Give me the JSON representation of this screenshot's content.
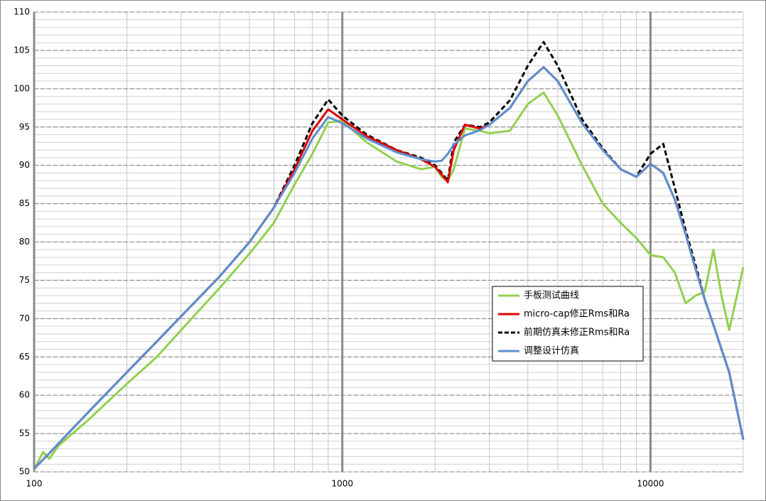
{
  "chart_data": {
    "type": "line",
    "xscale": "log",
    "grid": true,
    "legend": "right",
    "x": [
      100,
      107,
      112,
      120,
      150,
      200,
      250,
      300,
      400,
      500,
      600,
      700,
      800,
      900,
      1000,
      1200,
      1500,
      1800,
      2000,
      2100,
      2200,
      2300,
      2500,
      2800,
      3000,
      3500,
      4000,
      4500,
      5000,
      6000,
      7000,
      8000,
      9000,
      10000,
      11000,
      12000,
      13000,
      14000,
      15000,
      16000,
      17000,
      18000,
      20000
    ],
    "series": [
      {
        "name": "手板测试曲线",
        "color": "#92d050",
        "dash": false,
        "values": [
          50.3,
          52.6,
          51.7,
          53.4,
          56.8,
          61.5,
          65.0,
          68.5,
          74.0,
          78.5,
          82.5,
          87.5,
          91.5,
          95.6,
          95.8,
          93.0,
          90.5,
          89.5,
          89.8,
          88.5,
          88.0,
          89.5,
          94.8,
          94.5,
          94.2,
          94.5,
          98.0,
          99.5,
          96.5,
          90.0,
          85.0,
          82.5,
          80.5,
          78.3,
          78.0,
          76.0,
          72.0,
          73.0,
          73.5,
          79.0,
          73.0,
          68.5,
          76.7
        ]
      },
      {
        "name": "micro-cap修正Rms和Ra",
        "color": "#e00000",
        "dash": false,
        "values": [
          50.4,
          51.6,
          52.4,
          53.7,
          57.8,
          63.0,
          67.0,
          70.3,
          75.5,
          80.0,
          84.5,
          89.5,
          94.5,
          97.3,
          96.0,
          93.8,
          92.0,
          90.8,
          89.8,
          88.8,
          87.8,
          92.0,
          95.3,
          94.8,
          95.3,
          97.5,
          101.0,
          102.8,
          101.0,
          95.5,
          92.0,
          89.5,
          88.5,
          90.2,
          89.0,
          85.5,
          81.0,
          76.5,
          72.5,
          69.2,
          66.0,
          63.0,
          54.2
        ]
      },
      {
        "name": "前期仿真未修正Rms和Ra",
        "color": "#000000",
        "dash": true,
        "values": [
          50.4,
          51.6,
          52.4,
          53.7,
          57.8,
          63.0,
          67.0,
          70.3,
          75.5,
          80.0,
          84.5,
          90.0,
          95.5,
          98.6,
          96.5,
          94.0,
          92.0,
          91.0,
          90.0,
          89.0,
          88.0,
          93.0,
          95.3,
          95.0,
          95.6,
          98.5,
          103.0,
          106.1,
          103.0,
          96.0,
          92.2,
          89.5,
          88.5,
          91.5,
          92.8,
          87.0,
          81.5,
          77.0,
          72.5,
          69.2,
          66.0,
          63.0,
          54.2
        ]
      },
      {
        "name": "调整设计仿真",
        "color": "#5b8fd0",
        "dash": false,
        "values": [
          50.4,
          51.6,
          52.4,
          53.7,
          57.8,
          63.0,
          67.0,
          70.3,
          75.5,
          80.0,
          84.5,
          89.0,
          93.5,
          96.3,
          95.5,
          93.5,
          91.7,
          90.8,
          90.5,
          90.6,
          91.5,
          92.7,
          93.9,
          94.6,
          95.3,
          97.5,
          101.0,
          102.8,
          101.0,
          95.5,
          92.0,
          89.5,
          88.5,
          90.2,
          89.0,
          85.5,
          81.0,
          76.5,
          72.5,
          69.2,
          66.0,
          63.0,
          54.2
        ]
      }
    ],
    "xlim": [
      100,
      20000
    ],
    "xticks": [
      100,
      1000,
      10000
    ],
    "ylim": [
      50,
      110
    ],
    "yticks": [
      50,
      55,
      60,
      65,
      70,
      75,
      80,
      85,
      90,
      95,
      100,
      105,
      110
    ]
  }
}
